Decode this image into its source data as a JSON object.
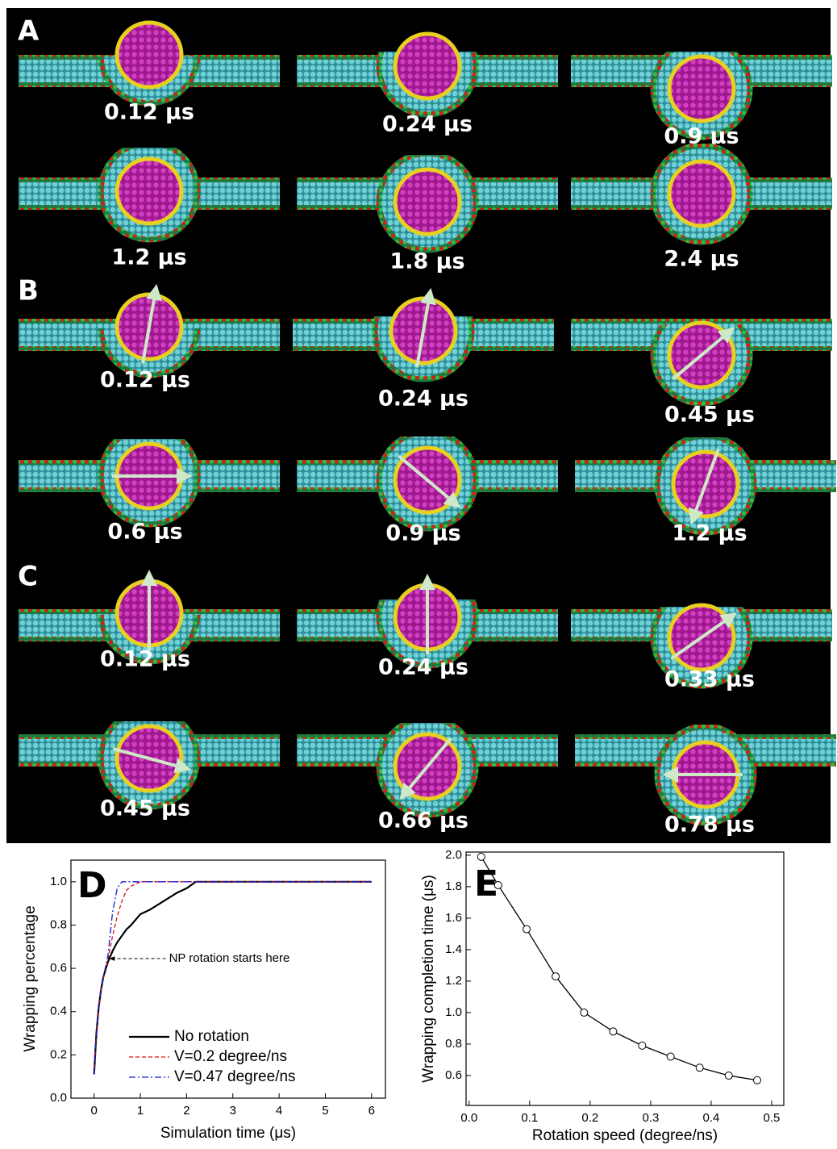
{
  "panels": [
    {
      "label": "A",
      "times": [
        "0.12 μs",
        "0.24 μs",
        "0.9 μs",
        "1.2 μs",
        "1.8 μs",
        "2.4 μs"
      ]
    },
    {
      "label": "B",
      "times": [
        "0.12 μs",
        "0.24 μs",
        "0.45 μs",
        "0.6 μs",
        "0.9 μs",
        "1.2 μs"
      ]
    },
    {
      "label": "C",
      "times": [
        "0.12 μs",
        "0.24 μs",
        "0.33 μs",
        "0.45 μs",
        "0.66 μs",
        "0.78 μs"
      ]
    }
  ],
  "chart_data": [
    {
      "type": "line",
      "panel_label": "D",
      "x_label": "Simulation time (μs)",
      "y_label": "Wrapping percentage",
      "annotation": "NP rotation starts here",
      "x": [
        0,
        0.05,
        0.1,
        0.15,
        0.2,
        0.3,
        0.4,
        0.5,
        0.6,
        0.7,
        0.8,
        1.0,
        1.2,
        1.5,
        1.8,
        2.0,
        2.2,
        2.4,
        3,
        4,
        5,
        6
      ],
      "series": [
        {
          "name": "No rotation",
          "color": "#000000",
          "linestyle": "solid",
          "values": [
            0.11,
            0.3,
            0.42,
            0.5,
            0.56,
            0.63,
            0.68,
            0.72,
            0.75,
            0.78,
            0.8,
            0.85,
            0.87,
            0.91,
            0.95,
            0.97,
            1.0,
            1.0,
            1.0,
            1.0,
            1.0,
            1.0
          ]
        },
        {
          "name": "V=0.2 degree/ns",
          "color": "#e01010",
          "linestyle": "dashed",
          "values": [
            0.11,
            0.3,
            0.42,
            0.5,
            0.56,
            0.64,
            0.75,
            0.84,
            0.91,
            0.96,
            0.98,
            1.0,
            1.0,
            1.0,
            1.0,
            1.0,
            1.0,
            1.0,
            1.0,
            1.0,
            1.0,
            1.0
          ]
        },
        {
          "name": "V=0.47 degree/ns",
          "color": "#1020d0",
          "linestyle": "dashdot",
          "values": [
            0.11,
            0.3,
            0.42,
            0.5,
            0.56,
            0.66,
            0.86,
            0.97,
            1.0,
            1.0,
            1.0,
            1.0,
            1.0,
            1.0,
            1.0,
            1.0,
            1.0,
            1.0,
            1.0,
            1.0,
            1.0,
            1.0
          ]
        }
      ],
      "xlim": [
        -0.5,
        6.3
      ],
      "ylim": [
        0,
        1.1
      ],
      "xticks": [
        0,
        1,
        2,
        3,
        4,
        5,
        6
      ],
      "yticks": [
        {
          "value": 0,
          "label": "0.0"
        },
        0.2,
        0.4,
        0.6,
        0.8,
        {
          "value": 1,
          "label": "1.0"
        }
      ],
      "legend": "lower right"
    },
    {
      "type": "line",
      "panel_label": "E",
      "x_label": "Rotation speed (degree/ns)",
      "y_label": "Wrapping completion time (μs)",
      "markers": "open-circle",
      "x": [
        0.02,
        0.048,
        0.095,
        0.143,
        0.19,
        0.238,
        0.286,
        0.333,
        0.381,
        0.429,
        0.476
      ],
      "series": [
        {
          "color": "#000000",
          "linestyle": "solid",
          "values": [
            1.99,
            1.81,
            1.53,
            1.23,
            1.0,
            0.88,
            0.79,
            0.72,
            0.65,
            0.6,
            0.57
          ]
        }
      ],
      "xlim": [
        -0.005,
        0.52
      ],
      "ylim": [
        0.41,
        2.02
      ],
      "xticks": [
        {
          "value": 0,
          "label": "0.0"
        },
        0.1,
        0.2,
        0.3,
        0.4,
        0.5
      ],
      "yticks": [
        0.6,
        0.8,
        {
          "value": 1,
          "label": "1.0"
        },
        1.2,
        1.4,
        1.6,
        1.8,
        {
          "value": 2,
          "label": "2.0"
        }
      ]
    }
  ]
}
